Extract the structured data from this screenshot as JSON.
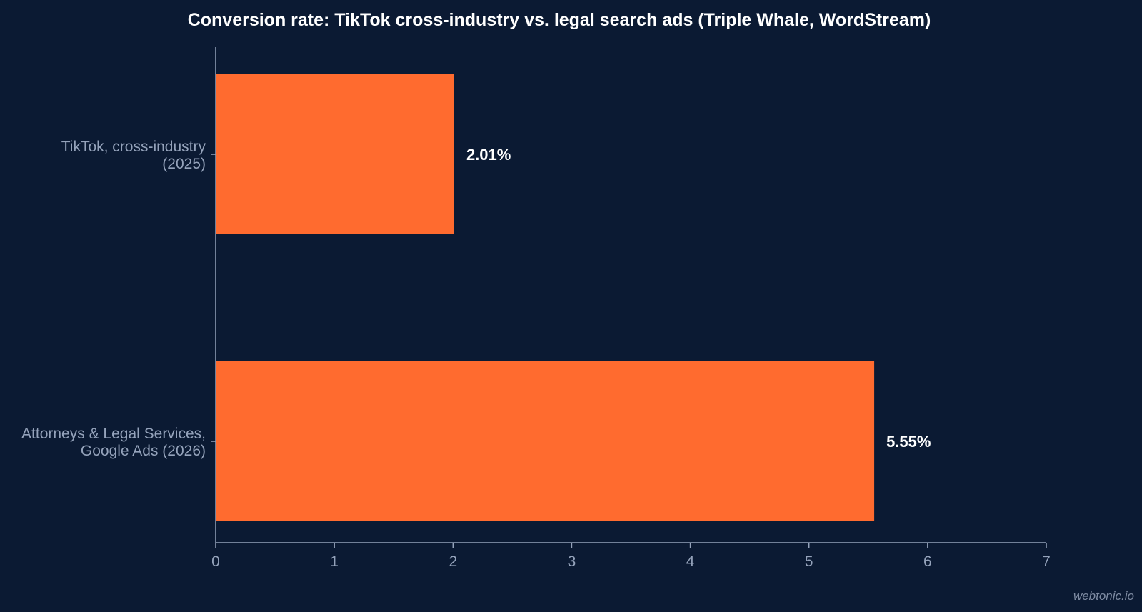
{
  "chart_data": {
    "type": "bar",
    "orientation": "horizontal",
    "title": "Conversion rate: TikTok cross-industry vs. legal search ads (Triple Whale, WordStream)",
    "categories": [
      [
        "TikTok, cross-industry",
        "(2025)"
      ],
      [
        "Attorneys & Legal Services,",
        "Google Ads (2026)"
      ]
    ],
    "values": [
      2.01,
      5.55
    ],
    "value_labels": [
      "2.01%",
      "5.55%"
    ],
    "xlim": [
      0,
      7
    ],
    "xticks": [
      "0",
      "1",
      "2",
      "3",
      "4",
      "5",
      "6",
      "7"
    ],
    "xlabel": "",
    "ylabel": "",
    "grid": false,
    "colors": {
      "background": "#0b1a33",
      "bar": "#ff6b2f",
      "axis": "#95a3bb",
      "text": "#ffffff"
    }
  },
  "watermark": "webtonic.io"
}
